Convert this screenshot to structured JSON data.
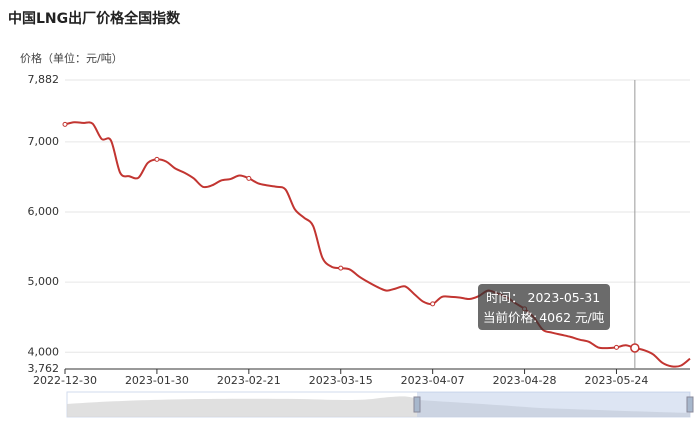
{
  "chart_data": {
    "type": "line",
    "title": "中国LNG出厂价格全国指数",
    "y_axis_label": "价格（单位：元/吨）",
    "categories": [
      "2022-12-30",
      null,
      null,
      null,
      null,
      null,
      null,
      null,
      null,
      null,
      "2023-01-30",
      null,
      null,
      null,
      null,
      null,
      null,
      null,
      null,
      null,
      "2023-02-21",
      null,
      null,
      null,
      null,
      null,
      null,
      null,
      null,
      null,
      "2023-03-15",
      null,
      null,
      null,
      null,
      null,
      null,
      null,
      null,
      null,
      "2023-04-07",
      null,
      null,
      null,
      null,
      null,
      null,
      null,
      null,
      null,
      "2023-04-28",
      null,
      null,
      null,
      null,
      null,
      null,
      null,
      null,
      null,
      "2023-05-24",
      null,
      null,
      null,
      null,
      null,
      null,
      null,
      null
    ],
    "values": [
      7250,
      7280,
      7270,
      7260,
      7040,
      7020,
      6560,
      6510,
      6490,
      6700,
      6750,
      6720,
      6620,
      6560,
      6480,
      6360,
      6380,
      6450,
      6470,
      6520,
      6480,
      6410,
      6380,
      6360,
      6320,
      6040,
      5920,
      5800,
      5350,
      5220,
      5200,
      5180,
      5080,
      5000,
      4930,
      4880,
      4910,
      4940,
      4830,
      4720,
      4690,
      4790,
      4790,
      4780,
      4760,
      4800,
      4880,
      4840,
      4790,
      4700,
      4620,
      4500,
      4320,
      4280,
      4250,
      4220,
      4180,
      4150,
      4070,
      4060,
      4070,
      4100,
      4062,
      4030,
      3970,
      3850,
      3800,
      3810,
      3910
    ],
    "color": "#c23531",
    "ylim": [
      3762,
      7882
    ],
    "yticks": [
      {
        "value": 3762,
        "label": "3,762"
      },
      {
        "value": 4000,
        "label": "4,000"
      },
      {
        "value": 5000,
        "label": "5,000"
      },
      {
        "value": 6000,
        "label": "6,000"
      },
      {
        "value": 7000,
        "label": "7,000"
      },
      {
        "value": 7882,
        "label": "7,882"
      }
    ],
    "grid": true,
    "tooltip": {
      "index": 62,
      "time_label": "时间：",
      "date": "2023-05-31",
      "price_label": "当前价格:",
      "unit": "元/吨"
    }
  }
}
